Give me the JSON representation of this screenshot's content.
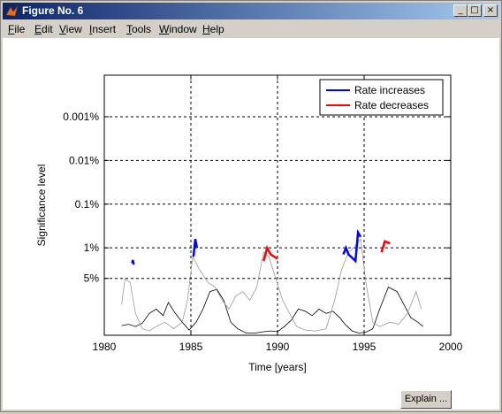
{
  "window": {
    "title": "Figure No. 6",
    "minimize_glyph": "_",
    "maximize_glyph": "□",
    "close_glyph": "×",
    "app_icon": "matlab-icon"
  },
  "menu": {
    "items": [
      {
        "label": "File",
        "accel": "F",
        "rest": "ile"
      },
      {
        "label": "Edit",
        "accel": "E",
        "rest": "dit"
      },
      {
        "label": "View",
        "accel": "V",
        "rest": "iew"
      },
      {
        "label": "Insert",
        "accel": "I",
        "rest": "nsert"
      },
      {
        "label": "Tools",
        "accel": "T",
        "rest": "ools"
      },
      {
        "label": "Window",
        "accel": "W",
        "rest": "indow"
      },
      {
        "label": "Help",
        "accel": "H",
        "rest": "elp"
      }
    ]
  },
  "buttons": {
    "explain": "Explain ..."
  },
  "chart_data": {
    "type": "line",
    "xlabel": "Time [years]",
    "ylabel": "Significance level",
    "xlim": [
      1980,
      2000
    ],
    "x_ticks": [
      1980,
      1985,
      1990,
      1995,
      2000
    ],
    "x_tick_labels": [
      "1980",
      "1985",
      "1990",
      "1995",
      "2000"
    ],
    "y_ticks": [
      {
        "label": "0.001%",
        "value": 1e-05
      },
      {
        "label": "0.01%",
        "value": 0.0001
      },
      {
        "label": "0.1%",
        "value": 0.001
      },
      {
        "label": "1%",
        "value": 0.01
      },
      {
        "label": "5%",
        "value": 0.05
      }
    ],
    "y_scale": "-log10 significance",
    "grid": "dashed, at tick marks",
    "legend": {
      "placement": "top-right",
      "entries": [
        {
          "label": "Rate increases",
          "color": "#0000ff"
        },
        {
          "label": "Rate decreases",
          "color": "#ff0000"
        }
      ]
    },
    "series": [
      {
        "color": "#000000",
        "values": [
          [
            1981.0,
            0.22
          ],
          [
            1981.4,
            0.25
          ],
          [
            1981.8,
            0.2
          ],
          [
            1982.2,
            0.28
          ],
          [
            1982.6,
            0.5
          ],
          [
            1983.0,
            0.6
          ],
          [
            1983.4,
            0.45
          ],
          [
            1983.7,
            0.75
          ],
          [
            1984.1,
            0.5
          ],
          [
            1984.5,
            0.3
          ],
          [
            1984.9,
            0.12
          ],
          [
            1985.3,
            0.3
          ],
          [
            1985.7,
            0.6
          ],
          [
            1986.1,
            1.0
          ],
          [
            1986.5,
            1.05
          ],
          [
            1986.9,
            0.8
          ],
          [
            1987.3,
            0.3
          ],
          [
            1987.7,
            0.15
          ],
          [
            1988.2,
            0.05
          ],
          [
            1988.7,
            0.05
          ],
          [
            1989.2,
            0.08
          ],
          [
            1989.6,
            0.1
          ],
          [
            1990.0,
            0.08
          ],
          [
            1990.4,
            0.2
          ],
          [
            1990.8,
            0.35
          ],
          [
            1991.2,
            0.6
          ],
          [
            1991.6,
            0.55
          ],
          [
            1992.0,
            0.45
          ],
          [
            1992.4,
            0.6
          ],
          [
            1992.8,
            0.5
          ],
          [
            1993.2,
            0.55
          ],
          [
            1993.6,
            0.4
          ],
          [
            1993.9,
            0.25
          ],
          [
            1994.3,
            0.1
          ],
          [
            1994.7,
            0.05
          ],
          [
            1995.1,
            0.07
          ],
          [
            1995.5,
            0.15
          ],
          [
            1995.9,
            0.6
          ],
          [
            1996.4,
            1.1
          ],
          [
            1996.9,
            1.0
          ],
          [
            1997.3,
            0.7
          ],
          [
            1997.7,
            0.4
          ],
          [
            1998.1,
            0.3
          ],
          [
            1998.4,
            0.2
          ]
        ]
      },
      {
        "color": "#999999",
        "values": [
          [
            1981.0,
            0.7
          ],
          [
            1981.2,
            1.3
          ],
          [
            1981.5,
            1.2
          ],
          [
            1981.8,
            0.5
          ],
          [
            1982.2,
            0.15
          ],
          [
            1982.6,
            0.1
          ],
          [
            1983.0,
            0.2
          ],
          [
            1983.5,
            0.3
          ],
          [
            1984.0,
            0.15
          ],
          [
            1984.5,
            0.3
          ],
          [
            1984.8,
            0.8
          ],
          [
            1985.1,
            1.8
          ],
          [
            1985.5,
            1.5
          ],
          [
            1986.0,
            1.2
          ],
          [
            1986.4,
            1.1
          ],
          [
            1986.8,
            0.8
          ],
          [
            1987.2,
            0.6
          ],
          [
            1987.6,
            0.9
          ],
          [
            1988.0,
            1.0
          ],
          [
            1988.4,
            0.8
          ],
          [
            1988.8,
            1.1
          ],
          [
            1989.2,
            1.9
          ],
          [
            1989.5,
            1.8
          ],
          [
            1989.9,
            1.3
          ],
          [
            1990.3,
            0.8
          ],
          [
            1990.7,
            0.5
          ],
          [
            1991.1,
            0.2
          ],
          [
            1991.6,
            0.12
          ],
          [
            1992.2,
            0.1
          ],
          [
            1992.8,
            0.15
          ],
          [
            1993.3,
            0.8
          ],
          [
            1993.7,
            1.5
          ],
          [
            1994.1,
            1.9
          ],
          [
            1994.4,
            2.0
          ],
          [
            1994.8,
            2.2
          ],
          [
            1995.1,
            1.2
          ],
          [
            1995.5,
            0.3
          ],
          [
            1995.9,
            0.2
          ],
          [
            1996.5,
            0.3
          ],
          [
            1997.0,
            0.25
          ],
          [
            1997.5,
            0.5
          ],
          [
            1998.0,
            1.0
          ],
          [
            1998.3,
            0.6
          ]
        ]
      },
      {
        "color": "#0000ff",
        "values": [
          [
            1981.6,
            1.65
          ],
          [
            1981.65,
            1.72
          ],
          [
            1981.7,
            1.62
          ],
          [
            1985.15,
            1.8
          ],
          [
            1985.25,
            2.2
          ],
          [
            1985.35,
            2.0
          ],
          [
            1993.8,
            1.85
          ],
          [
            1993.95,
            2.0
          ],
          [
            1994.1,
            1.85
          ],
          [
            1994.5,
            1.7
          ],
          [
            1994.65,
            2.35
          ],
          [
            1994.8,
            2.25
          ]
        ]
      },
      {
        "color": "#ff0000",
        "values": [
          [
            1989.2,
            1.7
          ],
          [
            1989.4,
            2.0
          ],
          [
            1989.6,
            1.85
          ],
          [
            1990.0,
            1.75
          ],
          [
            1996.0,
            1.9
          ],
          [
            1996.2,
            2.15
          ],
          [
            1996.5,
            2.1
          ]
        ]
      }
    ]
  }
}
